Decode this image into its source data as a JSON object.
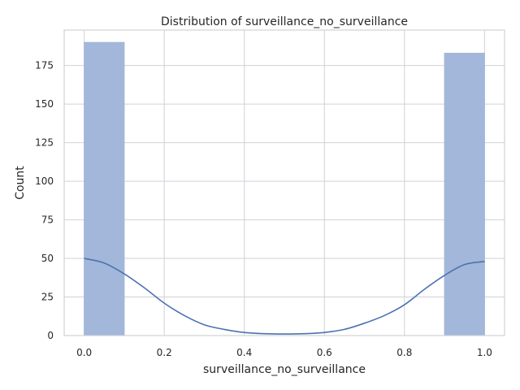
{
  "chart_data": {
    "type": "bar",
    "title": "Distribution of surveillance_no_surveillance",
    "xlabel": "surveillance_no_surveillance",
    "ylabel": "Count",
    "xlim": [
      -0.05,
      1.05
    ],
    "ylim": [
      0,
      198
    ],
    "xticks": [
      0.0,
      0.2,
      0.4,
      0.6,
      0.8,
      1.0
    ],
    "xtick_labels": [
      "0.0",
      "0.2",
      "0.4",
      "0.6",
      "0.8",
      "1.0"
    ],
    "yticks": [
      0,
      25,
      50,
      75,
      100,
      125,
      150,
      175
    ],
    "ytick_labels": [
      "0",
      "25",
      "50",
      "75",
      "100",
      "125",
      "150",
      "175"
    ],
    "grid": true,
    "bins": [
      {
        "x0": 0.0,
        "x1": 0.1,
        "count": 190
      },
      {
        "x0": 0.9,
        "x1": 1.0,
        "count": 183
      }
    ],
    "kde": {
      "x": [
        0.0,
        0.05,
        0.1,
        0.15,
        0.2,
        0.25,
        0.3,
        0.35,
        0.4,
        0.45,
        0.5,
        0.55,
        0.6,
        0.65,
        0.7,
        0.75,
        0.8,
        0.85,
        0.9,
        0.95,
        1.0
      ],
      "y": [
        50,
        47,
        40,
        31,
        21,
        13,
        7,
        4,
        2,
        1.2,
        1,
        1.2,
        2,
        4,
        8,
        13,
        20,
        30,
        39,
        46,
        48
      ]
    },
    "colors": {
      "bar": "#a3b7da",
      "kde": "#4c72b0"
    }
  }
}
